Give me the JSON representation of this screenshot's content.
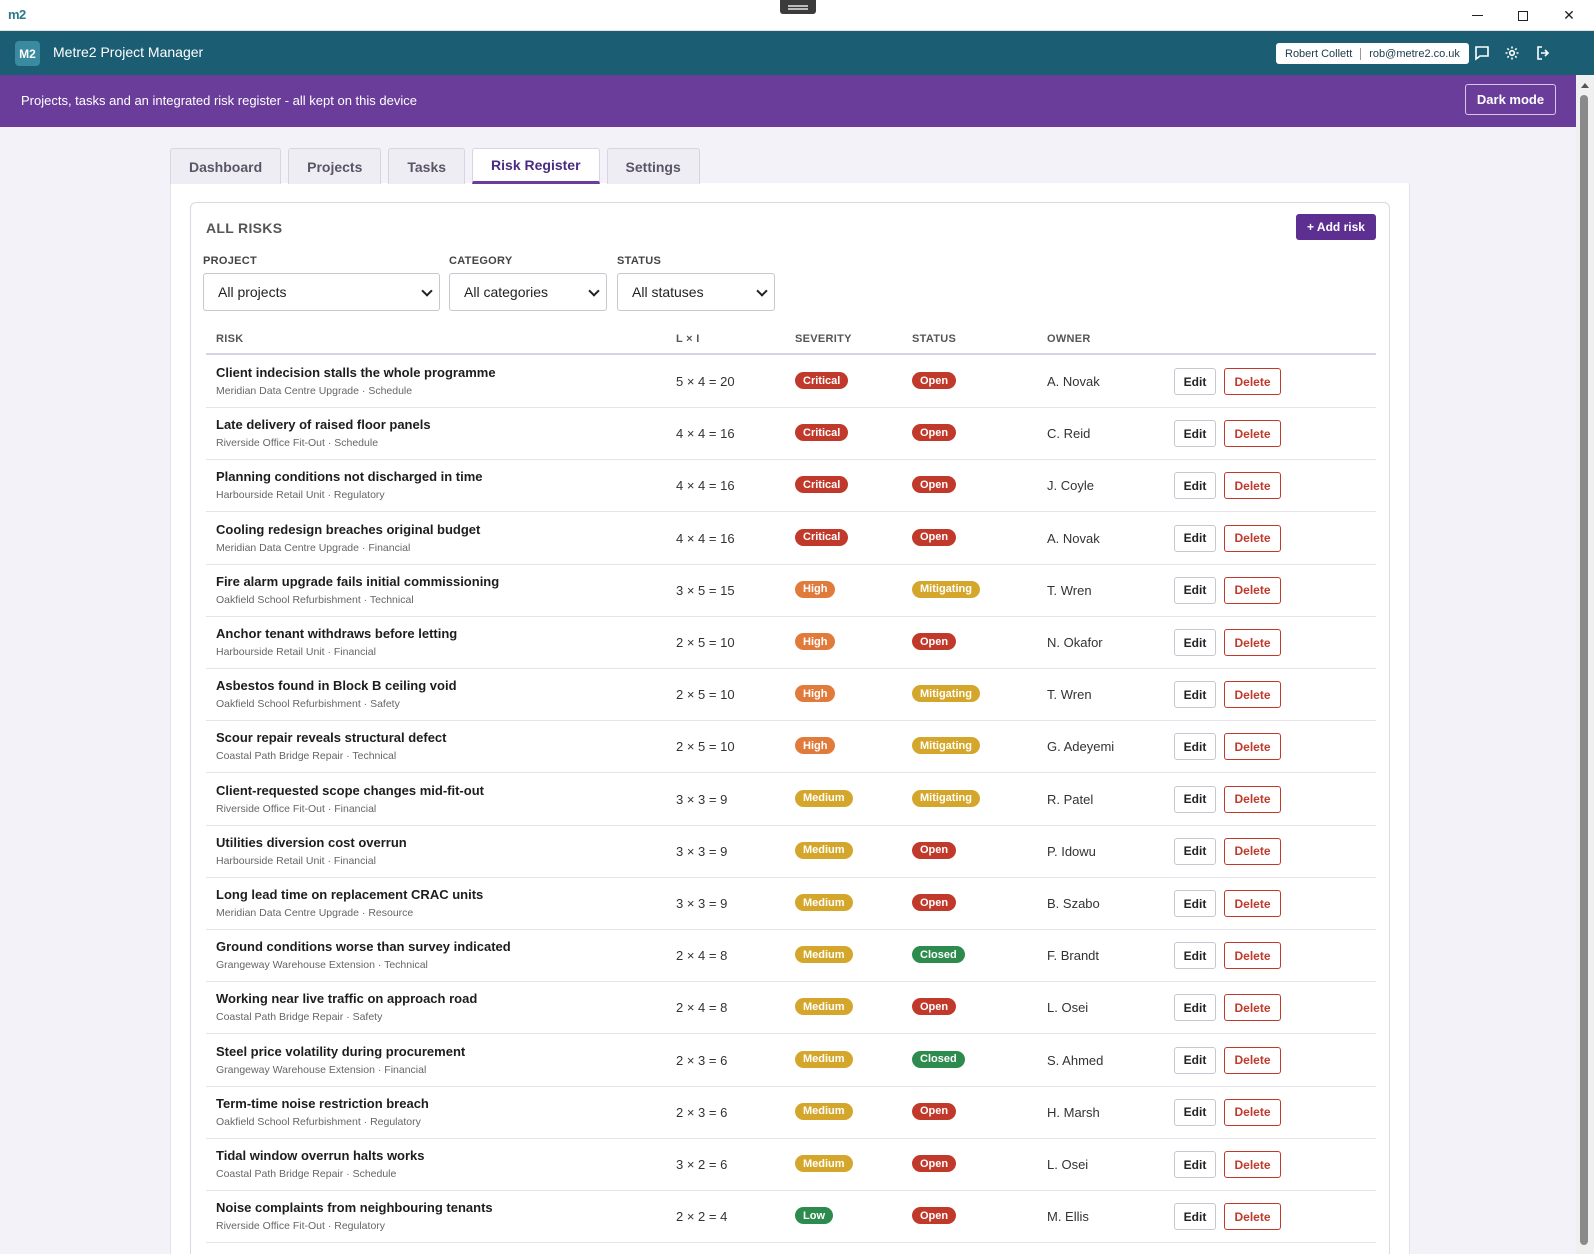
{
  "os": {
    "logo": "m2",
    "minimize": "—",
    "maximize": "☐",
    "close": "✕"
  },
  "header": {
    "logo": "M2",
    "title": "Metre2 Project Manager",
    "user_name": "Robert Collett",
    "user_email": "rob@metre2.co.uk"
  },
  "banner": {
    "text": "Projects, tasks and an integrated risk register - all kept on this device",
    "dark_mode_label": "Dark mode"
  },
  "tabs": [
    {
      "label": "Dashboard",
      "active": false
    },
    {
      "label": "Projects",
      "active": false
    },
    {
      "label": "Tasks",
      "active": false
    },
    {
      "label": "Risk Register",
      "active": true
    },
    {
      "label": "Settings",
      "active": false
    }
  ],
  "register": {
    "title": "ALL RISKS",
    "add_label": "+ Add risk",
    "filters": {
      "project_label": "PROJECT",
      "project_value": "All projects",
      "category_label": "CATEGORY",
      "category_value": "All categories",
      "status_label": "STATUS",
      "status_value": "All statuses"
    },
    "columns": {
      "risk": "RISK",
      "score": "L × I",
      "severity": "SEVERITY",
      "status": "STATUS",
      "owner": "OWNER"
    },
    "edit_label": "Edit",
    "delete_label": "Delete",
    "severity_colors": {
      "Critical": "#c0392b",
      "High": "#e07b3c",
      "Medium": "#d4a72c",
      "Low": "#2e8b4e"
    },
    "status_colors": {
      "Open": "#c0392b",
      "Mitigating": "#d4a72c",
      "Closed": "#2e8b4e"
    },
    "rows": [
      {
        "title": "Client indecision stalls the whole programme",
        "sub": "Meridian Data Centre Upgrade · Schedule",
        "score": "5 × 4 = 20",
        "severity": "Critical",
        "status": "Open",
        "owner": "A. Novak"
      },
      {
        "title": "Late delivery of raised floor panels",
        "sub": "Riverside Office Fit-Out · Schedule",
        "score": "4 × 4 = 16",
        "severity": "Critical",
        "status": "Open",
        "owner": "C. Reid"
      },
      {
        "title": "Planning conditions not discharged in time",
        "sub": "Harbourside Retail Unit · Regulatory",
        "score": "4 × 4 = 16",
        "severity": "Critical",
        "status": "Open",
        "owner": "J. Coyle"
      },
      {
        "title": "Cooling redesign breaches original budget",
        "sub": "Meridian Data Centre Upgrade · Financial",
        "score": "4 × 4 = 16",
        "severity": "Critical",
        "status": "Open",
        "owner": "A. Novak"
      },
      {
        "title": "Fire alarm upgrade fails initial commissioning",
        "sub": "Oakfield School Refurbishment · Technical",
        "score": "3 × 5 = 15",
        "severity": "High",
        "status": "Mitigating",
        "owner": "T. Wren"
      },
      {
        "title": "Anchor tenant withdraws before letting",
        "sub": "Harbourside Retail Unit · Financial",
        "score": "2 × 5 = 10",
        "severity": "High",
        "status": "Open",
        "owner": "N. Okafor"
      },
      {
        "title": "Asbestos found in Block B ceiling void",
        "sub": "Oakfield School Refurbishment · Safety",
        "score": "2 × 5 = 10",
        "severity": "High",
        "status": "Mitigating",
        "owner": "T. Wren"
      },
      {
        "title": "Scour repair reveals structural defect",
        "sub": "Coastal Path Bridge Repair · Technical",
        "score": "2 × 5 = 10",
        "severity": "High",
        "status": "Mitigating",
        "owner": "G. Adeyemi"
      },
      {
        "title": "Client-requested scope changes mid-fit-out",
        "sub": "Riverside Office Fit-Out · Financial",
        "score": "3 × 3 = 9",
        "severity": "Medium",
        "status": "Mitigating",
        "owner": "R. Patel"
      },
      {
        "title": "Utilities diversion cost overrun",
        "sub": "Harbourside Retail Unit · Financial",
        "score": "3 × 3 = 9",
        "severity": "Medium",
        "status": "Open",
        "owner": "P. Idowu"
      },
      {
        "title": "Long lead time on replacement CRAC units",
        "sub": "Meridian Data Centre Upgrade · Resource",
        "score": "3 × 3 = 9",
        "severity": "Medium",
        "status": "Open",
        "owner": "B. Szabo"
      },
      {
        "title": "Ground conditions worse than survey indicated",
        "sub": "Grangeway Warehouse Extension · Technical",
        "score": "2 × 4 = 8",
        "severity": "Medium",
        "status": "Closed",
        "owner": "F. Brandt"
      },
      {
        "title": "Working near live traffic on approach road",
        "sub": "Coastal Path Bridge Repair · Safety",
        "score": "2 × 4 = 8",
        "severity": "Medium",
        "status": "Open",
        "owner": "L. Osei"
      },
      {
        "title": "Steel price volatility during procurement",
        "sub": "Grangeway Warehouse Extension · Financial",
        "score": "2 × 3 = 6",
        "severity": "Medium",
        "status": "Closed",
        "owner": "S. Ahmed"
      },
      {
        "title": "Term-time noise restriction breach",
        "sub": "Oakfield School Refurbishment · Regulatory",
        "score": "2 × 3 = 6",
        "severity": "Medium",
        "status": "Open",
        "owner": "H. Marsh"
      },
      {
        "title": "Tidal window overrun halts works",
        "sub": "Coastal Path Bridge Repair · Schedule",
        "score": "3 × 2 = 6",
        "severity": "Medium",
        "status": "Open",
        "owner": "L. Osei"
      },
      {
        "title": "Noise complaints from neighbouring tenants",
        "sub": "Riverside Office Fit-Out · Regulatory",
        "score": "2 × 2 = 4",
        "severity": "Low",
        "status": "Open",
        "owner": "M. Ellis"
      }
    ]
  }
}
